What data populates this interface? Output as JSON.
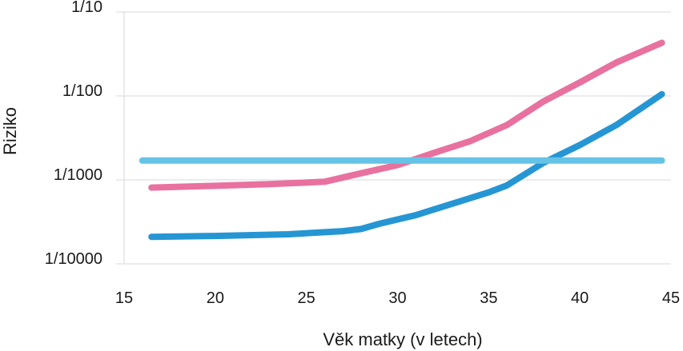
{
  "chart_data": {
    "type": "line",
    "xlabel": "Věk matky (v letech)",
    "ylabel": "Riziko",
    "xlim": [
      15,
      45
    ],
    "x_ticks": [
      "15",
      "20",
      "25",
      "30",
      "35",
      "40",
      "45"
    ],
    "y_scale": "log",
    "ylim": [
      0.0001,
      0.1
    ],
    "y_ticks": [
      {
        "value": 0.1,
        "label": "1/10"
      },
      {
        "value": 0.01,
        "label": "1/100"
      },
      {
        "value": 0.001,
        "label": "1/1000"
      },
      {
        "value": 0.0001,
        "label": "1/10000"
      }
    ],
    "grid": "horizontal",
    "legend": "none",
    "series": [
      {
        "color": "#e8719f",
        "x": [
          16.5,
          20,
          23,
          26,
          28,
          30,
          32,
          34,
          36,
          38,
          40,
          42,
          44.5
        ],
        "y": [
          0.00081,
          0.00085,
          0.00089,
          0.00095,
          0.0012,
          0.0015,
          0.0021,
          0.0029,
          0.0045,
          0.0086,
          0.0145,
          0.025,
          0.043
        ]
      },
      {
        "color": "#2596d3",
        "x": [
          16.5,
          20,
          24,
          27,
          28,
          29,
          31,
          33,
          35,
          36,
          38,
          40,
          42,
          44.5
        ],
        "y": [
          0.00021,
          0.000215,
          0.000225,
          0.000245,
          0.00026,
          0.0003,
          0.00038,
          0.00052,
          0.00071,
          0.00086,
          0.0016,
          0.0026,
          0.0045,
          0.0105
        ]
      },
      {
        "color": "#65c3e6",
        "x": [
          16,
          44.5
        ],
        "y": [
          0.0017,
          0.0017
        ]
      }
    ]
  }
}
